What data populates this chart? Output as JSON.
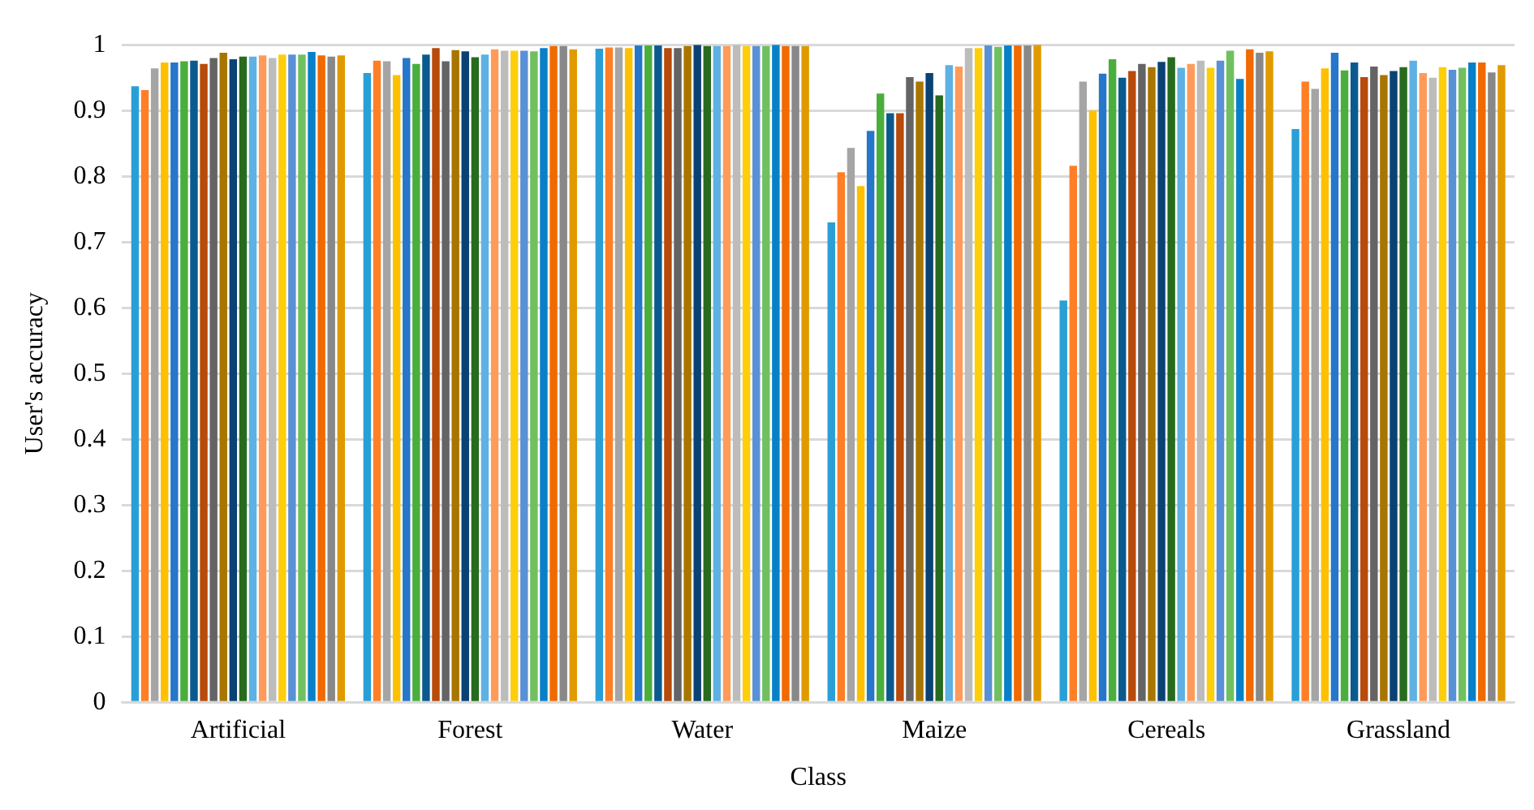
{
  "chart_data": {
    "type": "bar",
    "xlabel": "Class",
    "ylabel": "User's accuracy",
    "categories": [
      "Artificial",
      "Forest",
      "Water",
      "Maize",
      "Cereals",
      "Grassland"
    ],
    "ylim": [
      0,
      1
    ],
    "yticks": [
      0,
      0.1,
      0.2,
      0.3,
      0.4,
      0.5,
      0.6,
      0.7,
      0.8,
      0.9,
      1
    ],
    "grid": "y",
    "legend": false,
    "series": [
      {
        "color": "#2a9fd6",
        "values": [
          0.937,
          0.957,
          0.994,
          0.73,
          0.611,
          0.872
        ]
      },
      {
        "color": "#ff7f27",
        "values": [
          0.931,
          0.976,
          0.996,
          0.806,
          0.816,
          0.944
        ]
      },
      {
        "color": "#a5a5a5",
        "values": [
          0.964,
          0.975,
          0.996,
          0.843,
          0.944,
          0.933
        ]
      },
      {
        "color": "#ffc000",
        "values": [
          0.973,
          0.954,
          0.995,
          0.785,
          0.9,
          0.964
        ]
      },
      {
        "color": "#2676c9",
        "values": [
          0.973,
          0.98,
          0.999,
          0.869,
          0.956,
          0.988
        ]
      },
      {
        "color": "#4aae3c",
        "values": [
          0.975,
          0.971,
          0.999,
          0.926,
          0.978,
          0.961
        ]
      },
      {
        "color": "#0b5a8f",
        "values": [
          0.976,
          0.985,
          0.999,
          0.896,
          0.95,
          0.973
        ]
      },
      {
        "color": "#b84a0a",
        "values": [
          0.971,
          0.995,
          0.995,
          0.896,
          0.96,
          0.951
        ]
      },
      {
        "color": "#646464",
        "values": [
          0.98,
          0.975,
          0.995,
          0.951,
          0.971,
          0.967
        ]
      },
      {
        "color": "#a87500",
        "values": [
          0.988,
          0.992,
          0.998,
          0.944,
          0.966,
          0.954
        ]
      },
      {
        "color": "#0a4274",
        "values": [
          0.978,
          0.99,
          1.0,
          0.957,
          0.974,
          0.96
        ]
      },
      {
        "color": "#276b1e",
        "values": [
          0.982,
          0.981,
          0.998,
          0.923,
          0.981,
          0.966
        ]
      },
      {
        "color": "#5eb1e2",
        "values": [
          0.982,
          0.985,
          0.998,
          0.969,
          0.965,
          0.976
        ]
      },
      {
        "color": "#ff9b5a",
        "values": [
          0.984,
          0.993,
          0.998,
          0.967,
          0.971,
          0.957
        ]
      },
      {
        "color": "#bcbcbc",
        "values": [
          0.98,
          0.991,
          1.0,
          0.995,
          0.976,
          0.95
        ]
      },
      {
        "color": "#ffce0a",
        "values": [
          0.985,
          0.991,
          0.998,
          0.995,
          0.965,
          0.966
        ]
      },
      {
        "color": "#5a90d6",
        "values": [
          0.985,
          0.991,
          0.998,
          0.999,
          0.976,
          0.962
        ]
      },
      {
        "color": "#70c060",
        "values": [
          0.985,
          0.99,
          0.998,
          0.997,
          0.991,
          0.965
        ]
      },
      {
        "color": "#0880c8",
        "values": [
          0.989,
          0.995,
          1.0,
          0.999,
          0.948,
          0.973
        ]
      },
      {
        "color": "#f06a00",
        "values": [
          0.984,
          0.998,
          0.998,
          0.999,
          0.993,
          0.973
        ]
      },
      {
        "color": "#888888",
        "values": [
          0.982,
          0.998,
          0.998,
          0.999,
          0.988,
          0.958
        ]
      },
      {
        "color": "#e09a00",
        "values": [
          0.984,
          0.993,
          0.998,
          1.0,
          0.99,
          0.969
        ]
      }
    ]
  }
}
